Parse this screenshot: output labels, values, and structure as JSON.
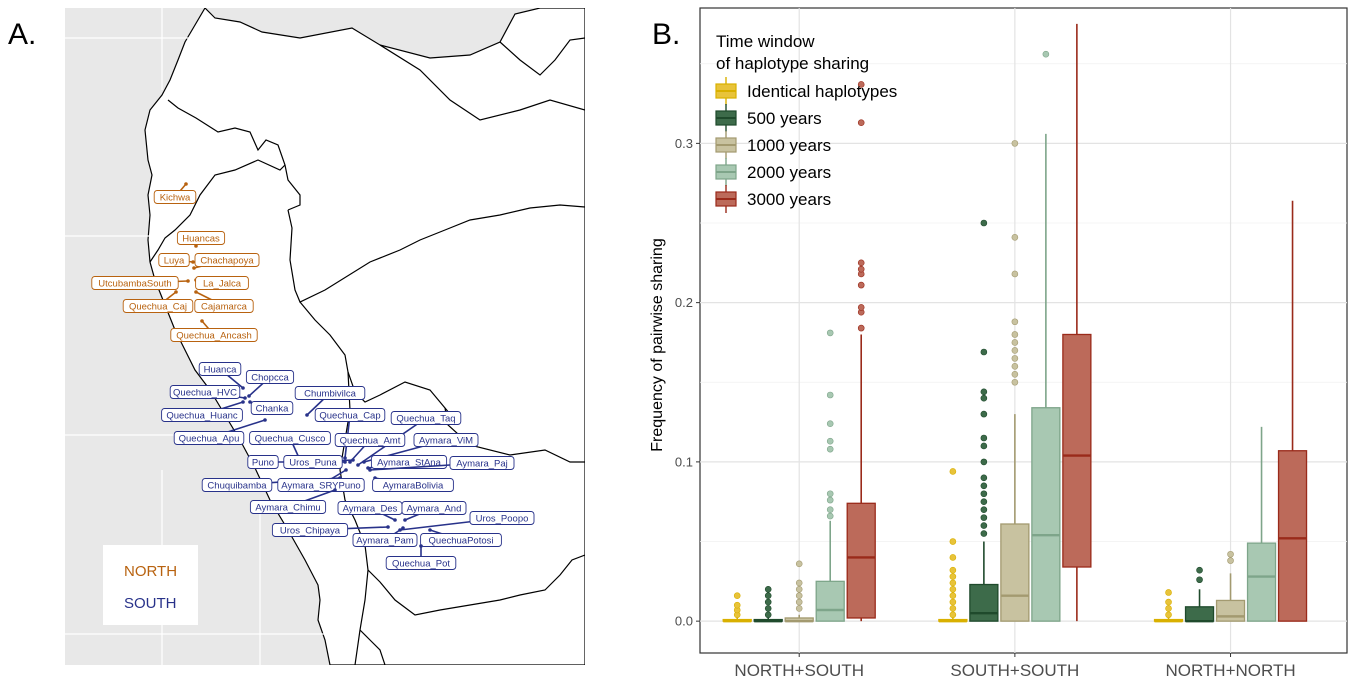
{
  "panel_a": {
    "letter": "A.",
    "north_color": "#b8620f",
    "south_color": "#28328a",
    "land_color": "#ffffff",
    "ocean_color": "#e8e8e8",
    "legend": {
      "north": "NORTH",
      "south": "SOUTH"
    },
    "populations": [
      {
        "name": "Kichwa",
        "region": "north"
      },
      {
        "name": "Huancas",
        "region": "north"
      },
      {
        "name": "Luya",
        "region": "north"
      },
      {
        "name": "Chachapoya",
        "region": "north"
      },
      {
        "name": "UtcubambaSouth",
        "region": "north"
      },
      {
        "name": "La_Jalca",
        "region": "north"
      },
      {
        "name": "Quechua_Caj",
        "region": "north"
      },
      {
        "name": "Cajamarca",
        "region": "north"
      },
      {
        "name": "Quechua_Ancash",
        "region": "north"
      },
      {
        "name": "Huanca",
        "region": "south"
      },
      {
        "name": "Chopcca",
        "region": "south"
      },
      {
        "name": "Quechua_HVC",
        "region": "south"
      },
      {
        "name": "Chanka",
        "region": "south"
      },
      {
        "name": "Chumbivilca",
        "region": "south"
      },
      {
        "name": "Quechua_Huanc",
        "region": "south"
      },
      {
        "name": "Quechua_Cap",
        "region": "south"
      },
      {
        "name": "Quechua_Taq",
        "region": "south"
      },
      {
        "name": "Quechua_Apu",
        "region": "south"
      },
      {
        "name": "Quechua_Cusco",
        "region": "south"
      },
      {
        "name": "Quechua_Amt",
        "region": "south"
      },
      {
        "name": "Aymara_ViM",
        "region": "south"
      },
      {
        "name": "Puno",
        "region": "south"
      },
      {
        "name": "Uros_Puna",
        "region": "south"
      },
      {
        "name": "Aymara_StAna",
        "region": "south"
      },
      {
        "name": "Aymara_Paj",
        "region": "south"
      },
      {
        "name": "Chuquibamba",
        "region": "south"
      },
      {
        "name": "Aymara_SRYPuno",
        "region": "south"
      },
      {
        "name": "AymaraBolivia",
        "region": "south"
      },
      {
        "name": "Aymara_Chimu",
        "region": "south"
      },
      {
        "name": "Aymara_Des",
        "region": "south"
      },
      {
        "name": "Aymara_And",
        "region": "south"
      },
      {
        "name": "Uros_Poopo",
        "region": "south"
      },
      {
        "name": "Uros_Chipaya",
        "region": "south"
      },
      {
        "name": "Aymara_Pam",
        "region": "south"
      },
      {
        "name": "QuechuaPotosi",
        "region": "south"
      },
      {
        "name": "Quechua_Pot",
        "region": "south"
      }
    ]
  },
  "panel_b": {
    "letter": "B."
  },
  "chart_data": {
    "type": "box",
    "ylabel": "Frequency of pairwise sharing",
    "xlabel": "",
    "ylim": [
      -0.02,
      0.385
    ],
    "yticks": [
      0.0,
      0.1,
      0.2,
      0.3
    ],
    "ytick_labels": [
      "0.0",
      "0.1",
      "0.2",
      "0.3"
    ],
    "grid": true,
    "legend": {
      "title_line1": "Time window",
      "title_line2": "of haplotype sharing",
      "placement": "top-left"
    },
    "categories": [
      "NORTH+SOUTH",
      "SOUTH+SOUTH",
      "NORTH+NORTH"
    ],
    "series": [
      {
        "name": "Identical haplotypes",
        "fill": "#e8c33a",
        "line": "#d9b000",
        "boxes": [
          {
            "min": 0.0,
            "q1": 0.0,
            "median": 0.0,
            "q3": 0.001,
            "max": 0.002,
            "outliers": [
              0.004,
              0.007,
              0.01,
              0.016
            ]
          },
          {
            "min": 0.0,
            "q1": 0.0,
            "median": 0.0,
            "q3": 0.001,
            "max": 0.002,
            "outliers": [
              0.004,
              0.008,
              0.012,
              0.016,
              0.02,
              0.024,
              0.028,
              0.032,
              0.04,
              0.05,
              0.094
            ]
          },
          {
            "min": 0.0,
            "q1": 0.0,
            "median": 0.0,
            "q3": 0.001,
            "max": 0.002,
            "outliers": [
              0.004,
              0.008,
              0.012,
              0.018
            ]
          }
        ]
      },
      {
        "name": "500 years",
        "fill": "#3d6b4a",
        "line": "#1f4a2c",
        "boxes": [
          {
            "min": 0.0,
            "q1": 0.0,
            "median": 0.0,
            "q3": 0.001,
            "max": 0.002,
            "outliers": [
              0.004,
              0.008,
              0.012,
              0.016,
              0.02
            ]
          },
          {
            "min": 0.0,
            "q1": 0.0,
            "median": 0.005,
            "q3": 0.023,
            "max": 0.05,
            "outliers": [
              0.055,
              0.06,
              0.065,
              0.07,
              0.075,
              0.08,
              0.085,
              0.09,
              0.1,
              0.11,
              0.115,
              0.13,
              0.14,
              0.144,
              0.169,
              0.25
            ]
          },
          {
            "min": 0.0,
            "q1": 0.0,
            "median": 0.0,
            "q3": 0.009,
            "max": 0.02,
            "outliers": [
              0.026,
              0.032
            ]
          }
        ]
      },
      {
        "name": "1000 years",
        "fill": "#c8c2a0",
        "line": "#a39a70",
        "boxes": [
          {
            "min": 0.0,
            "q1": 0.0,
            "median": 0.0,
            "q3": 0.002,
            "max": 0.004,
            "outliers": [
              0.008,
              0.012,
              0.016,
              0.02,
              0.024,
              0.036
            ]
          },
          {
            "min": 0.0,
            "q1": 0.0,
            "median": 0.016,
            "q3": 0.061,
            "max": 0.13,
            "outliers": [
              0.15,
              0.155,
              0.16,
              0.165,
              0.17,
              0.175,
              0.18,
              0.188,
              0.218,
              0.241,
              0.3
            ]
          },
          {
            "min": 0.0,
            "q1": 0.0,
            "median": 0.003,
            "q3": 0.013,
            "max": 0.03,
            "outliers": [
              0.038,
              0.042
            ]
          }
        ]
      },
      {
        "name": "2000 years",
        "fill": "#a8c8b2",
        "line": "#7ea58a",
        "boxes": [
          {
            "min": 0.0,
            "q1": 0.0,
            "median": 0.007,
            "q3": 0.025,
            "max": 0.063,
            "outliers": [
              0.066,
              0.07,
              0.076,
              0.08,
              0.108,
              0.113,
              0.124,
              0.142,
              0.181
            ]
          },
          {
            "min": 0.0,
            "q1": 0.0,
            "median": 0.054,
            "q3": 0.134,
            "max": 0.306,
            "outliers": [
              0.356
            ]
          },
          {
            "min": 0.0,
            "q1": 0.0,
            "median": 0.028,
            "q3": 0.049,
            "max": 0.122,
            "outliers": []
          }
        ]
      },
      {
        "name": "3000 years",
        "fill": "#bc6a5a",
        "line": "#9a2a1a",
        "boxes": [
          {
            "min": 0.0,
            "q1": 0.002,
            "median": 0.04,
            "q3": 0.074,
            "max": 0.18,
            "outliers": [
              0.184,
              0.194,
              0.197,
              0.211,
              0.218,
              0.221,
              0.225,
              0.313,
              0.337
            ]
          },
          {
            "min": 0.0,
            "q1": 0.034,
            "median": 0.104,
            "q3": 0.18,
            "max": 0.375,
            "outliers": []
          },
          {
            "min": 0.0,
            "q1": 0.0,
            "median": 0.052,
            "q3": 0.107,
            "max": 0.264,
            "outliers": []
          }
        ]
      }
    ]
  }
}
